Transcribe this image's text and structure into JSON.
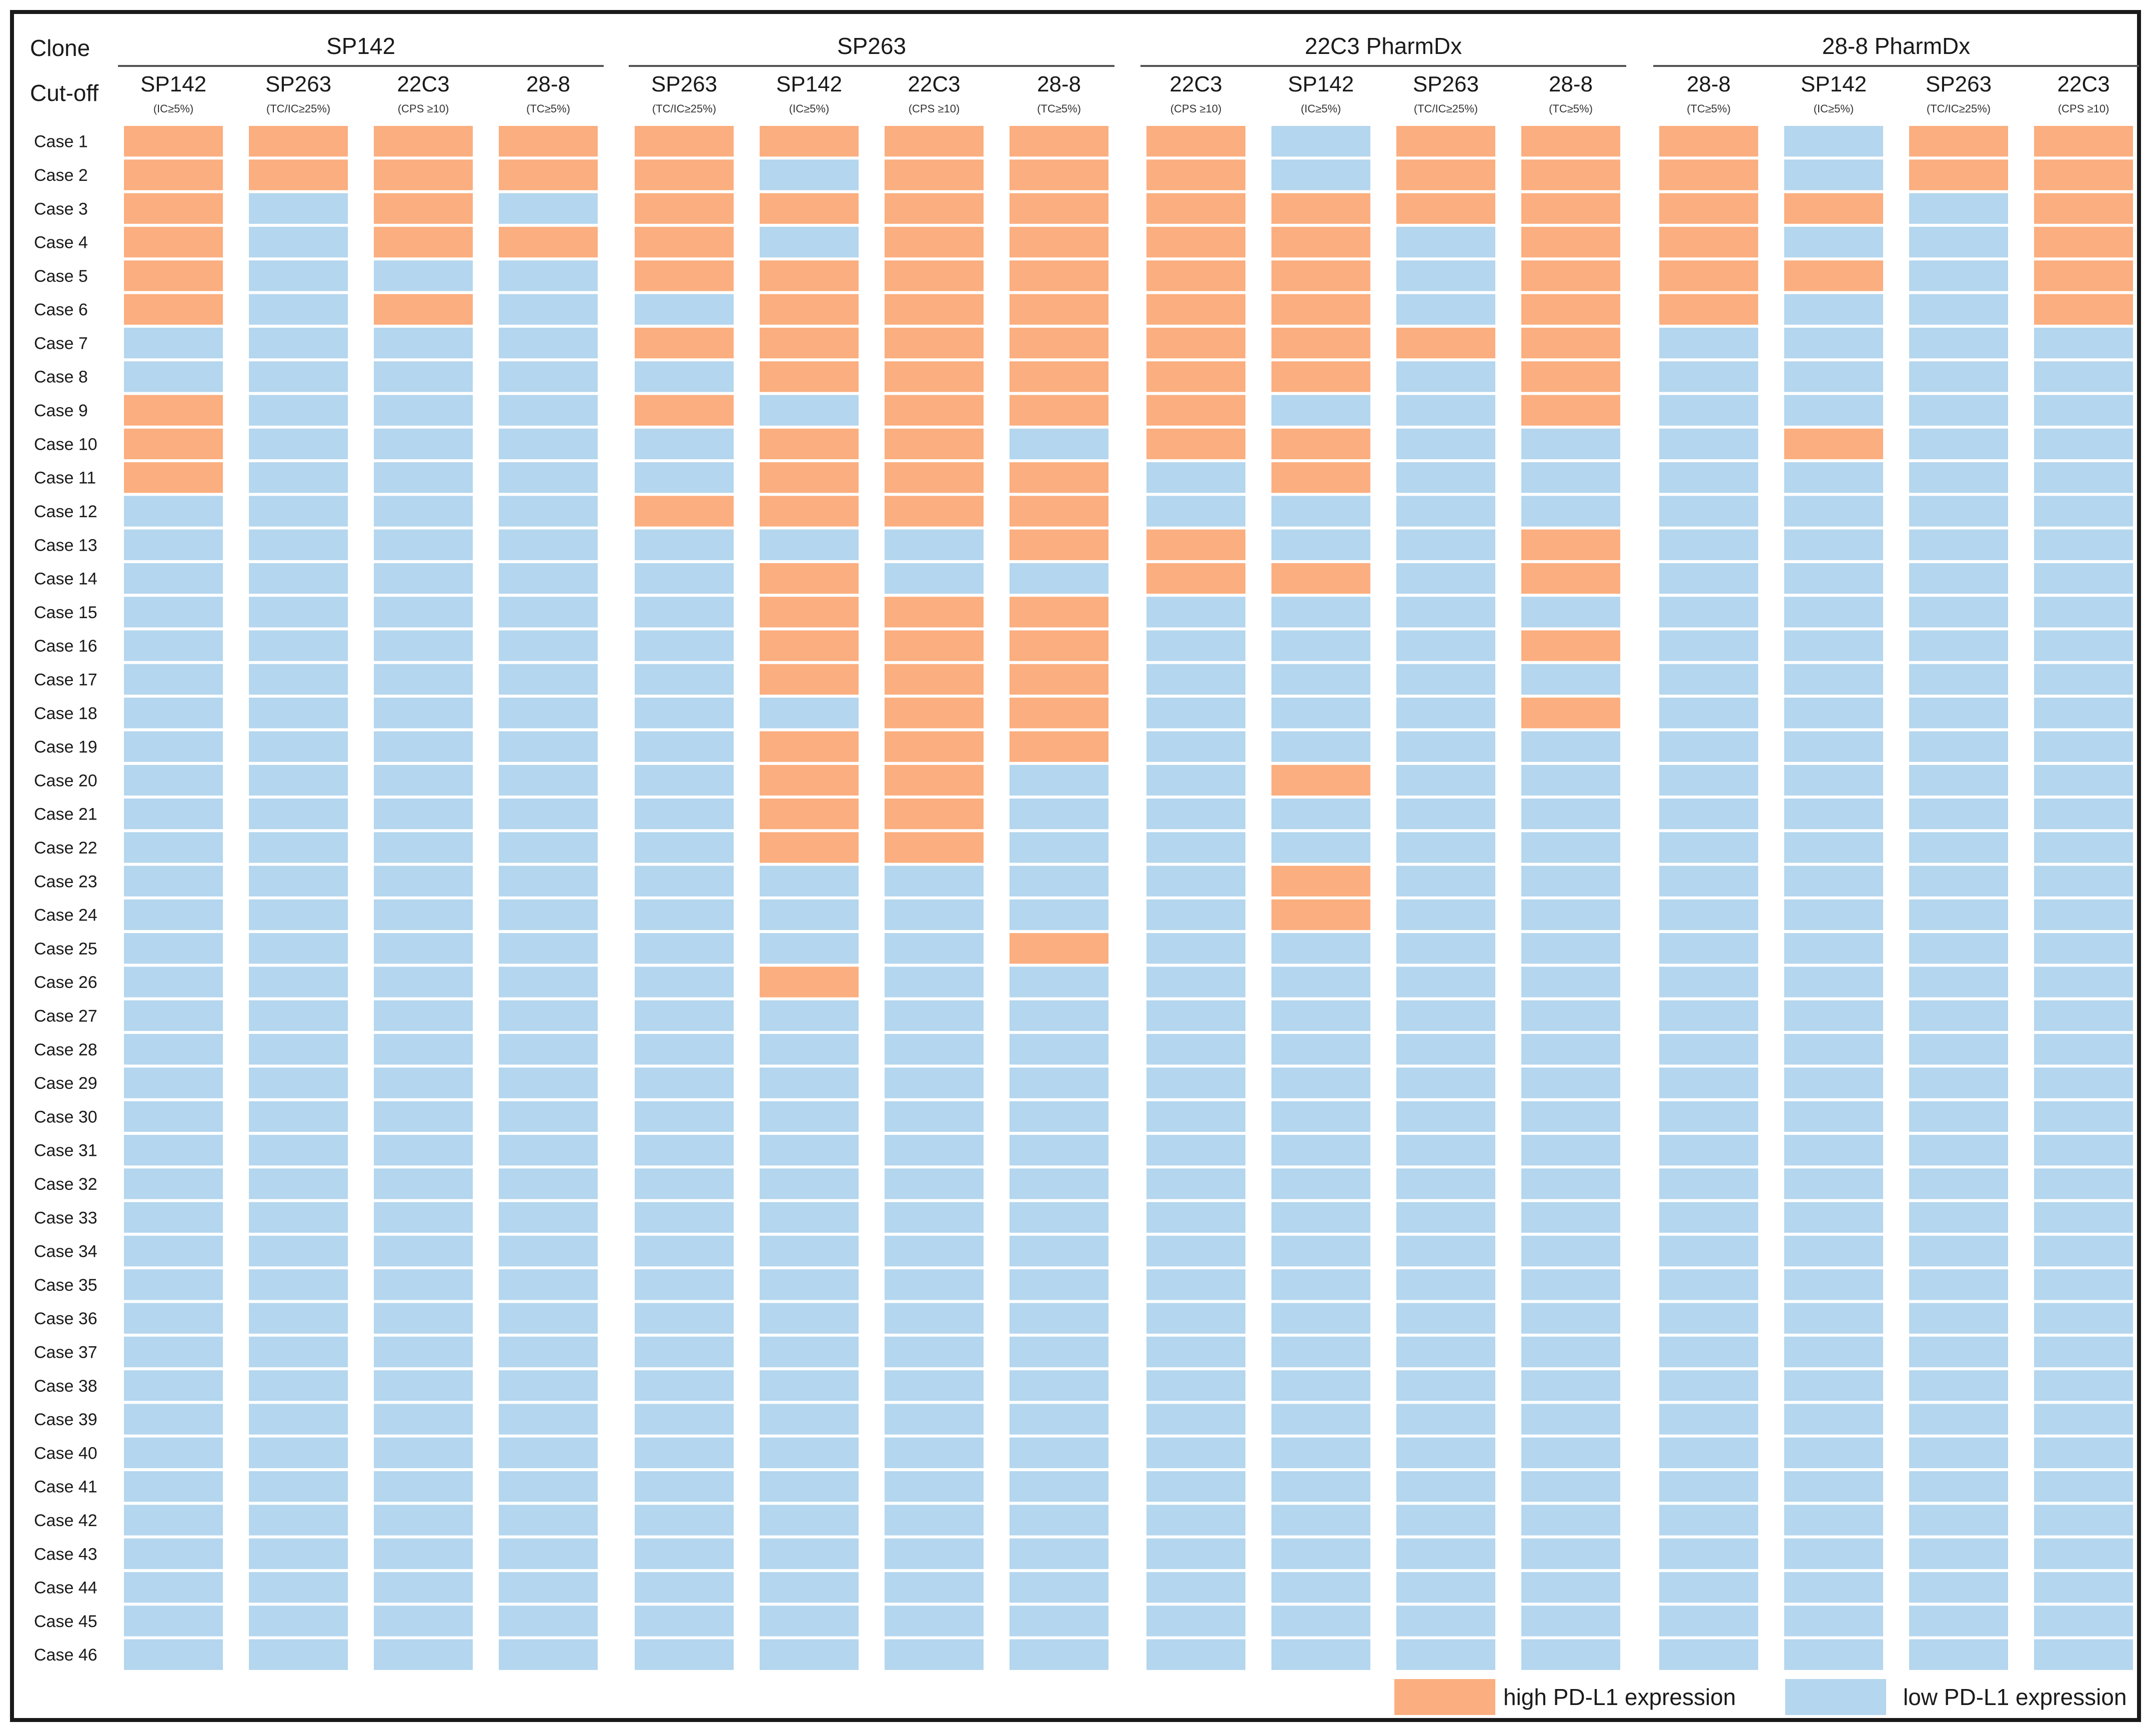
{
  "chart_data": {
    "type": "heatmap",
    "row_header_label": "Clone",
    "subheader_label": "Cut-off",
    "colors": {
      "high": "#FBAE7F",
      "low": "#B4D6EE"
    },
    "legend": {
      "high": "high PD-L1 expression",
      "low": "low PD-L1 expression"
    },
    "cases": [
      "Case 1",
      "Case 2",
      "Case 3",
      "Case 4",
      "Case 5",
      "Case 6",
      "Case 7",
      "Case 8",
      "Case 9",
      "Case 10",
      "Case 11",
      "Case 12",
      "Case 13",
      "Case 14",
      "Case 15",
      "Case 16",
      "Case 17",
      "Case 18",
      "Case 19",
      "Case 20",
      "Case 21",
      "Case 22",
      "Case 23",
      "Case 24",
      "Case 25",
      "Case 26",
      "Case 27",
      "Case 28",
      "Case 29",
      "Case 30",
      "Case 31",
      "Case 32",
      "Case 33",
      "Case 34",
      "Case 35",
      "Case 36",
      "Case 37",
      "Case 38",
      "Case 39",
      "Case 40",
      "Case 41",
      "Case 42",
      "Case 43",
      "Case 44",
      "Case 45",
      "Case 46"
    ],
    "groups": [
      {
        "clone": "SP142",
        "columns": [
          {
            "antibody": "SP142",
            "cutoff": "(IC≥5%)",
            "high_cases": [
              1,
              2,
              3,
              4,
              5,
              6,
              9,
              10,
              11
            ]
          },
          {
            "antibody": "SP263",
            "cutoff": "(TC/IC≥25%)",
            "high_cases": [
              1,
              2
            ]
          },
          {
            "antibody": "22C3",
            "cutoff": "(CPS ≥10)",
            "high_cases": [
              1,
              2,
              3,
              4,
              6
            ]
          },
          {
            "antibody": "28-8",
            "cutoff": "(TC≥5%)",
            "high_cases": [
              1,
              2,
              4
            ]
          }
        ]
      },
      {
        "clone": "SP263",
        "columns": [
          {
            "antibody": "SP263",
            "cutoff": "(TC/IC≥25%)",
            "high_cases": [
              1,
              2,
              3,
              4,
              5,
              7,
              9,
              12
            ]
          },
          {
            "antibody": "SP142",
            "cutoff": "(IC≥5%)",
            "high_cases": [
              1,
              3,
              5,
              6,
              7,
              8,
              10,
              11,
              12,
              14,
              15,
              16,
              17,
              19,
              20,
              21,
              22,
              26
            ]
          },
          {
            "antibody": "22C3",
            "cutoff": "(CPS ≥10)",
            "high_cases": [
              1,
              2,
              3,
              4,
              5,
              6,
              7,
              8,
              9,
              10,
              11,
              12,
              15,
              16,
              17,
              18,
              19,
              20,
              21,
              22
            ]
          },
          {
            "antibody": "28-8",
            "cutoff": "(TC≥5%)",
            "high_cases": [
              1,
              2,
              3,
              4,
              5,
              6,
              7,
              8,
              9,
              11,
              12,
              13,
              15,
              16,
              17,
              18,
              19,
              25
            ]
          }
        ]
      },
      {
        "clone": "22C3 PharmDx",
        "columns": [
          {
            "antibody": "22C3",
            "cutoff": "(CPS ≥10)",
            "high_cases": [
              1,
              2,
              3,
              4,
              5,
              6,
              7,
              8,
              9,
              10,
              13,
              14
            ]
          },
          {
            "antibody": "SP142",
            "cutoff": "(IC≥5%)",
            "high_cases": [
              3,
              4,
              5,
              6,
              7,
              8,
              10,
              11,
              14,
              20,
              23,
              24
            ]
          },
          {
            "antibody": "SP263",
            "cutoff": "(TC/IC≥25%)",
            "high_cases": [
              1,
              2,
              3,
              7
            ]
          },
          {
            "antibody": "28-8",
            "cutoff": "(TC≥5%)",
            "high_cases": [
              1,
              2,
              3,
              4,
              5,
              6,
              7,
              8,
              9,
              13,
              14,
              16,
              18
            ]
          }
        ]
      },
      {
        "clone": "28-8 PharmDx",
        "columns": [
          {
            "antibody": "28-8",
            "cutoff": "(TC≥5%)",
            "high_cases": [
              1,
              2,
              3,
              4,
              5,
              6
            ]
          },
          {
            "antibody": "SP142",
            "cutoff": "(IC≥5%)",
            "high_cases": [
              3,
              5,
              10
            ]
          },
          {
            "antibody": "SP263",
            "cutoff": "(TC/IC≥25%)",
            "high_cases": [
              1,
              2
            ]
          },
          {
            "antibody": "22C3",
            "cutoff": "(CPS ≥10)",
            "high_cases": [
              1,
              2,
              3,
              4,
              5,
              6
            ]
          }
        ]
      }
    ]
  }
}
